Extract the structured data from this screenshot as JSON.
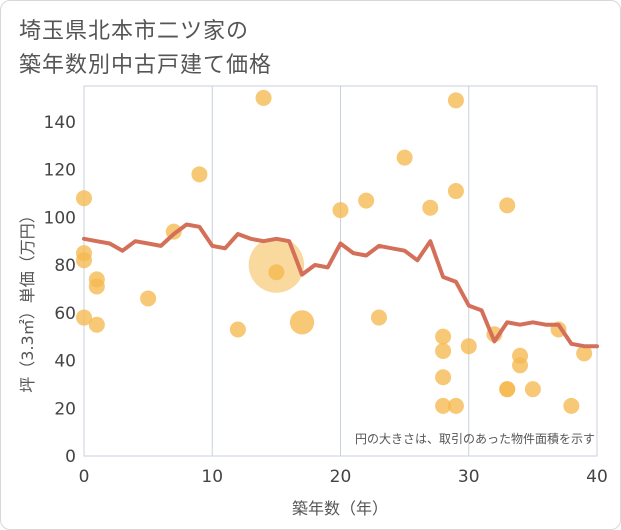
{
  "chart_data": {
    "type": "scatter",
    "title_line1": "埼玉県北本市二ツ家の",
    "title_line2": "築年数別中古戸建て価格",
    "xlabel": "築年数（年）",
    "ylabel": "坪（3.3㎡）単価（万円）",
    "note": "円の大きさは、取引のあった物件面積を示す",
    "xlim": [
      0,
      40
    ],
    "ylim": [
      0,
      155
    ],
    "x_ticks": [
      0,
      10,
      20,
      30,
      40
    ],
    "y_ticks": [
      0,
      20,
      40,
      60,
      80,
      100,
      120,
      140
    ],
    "grid": true,
    "colors": {
      "bubble": "#f5b94f",
      "line": "#d4705a",
      "grid": "#c8d2dc"
    },
    "points": [
      {
        "x": 0,
        "y": 108,
        "size": 1
      },
      {
        "x": 0,
        "y": 85,
        "size": 1
      },
      {
        "x": 0,
        "y": 82,
        "size": 1
      },
      {
        "x": 0,
        "y": 58,
        "size": 1
      },
      {
        "x": 1,
        "y": 74,
        "size": 1
      },
      {
        "x": 1,
        "y": 71,
        "size": 1
      },
      {
        "x": 1,
        "y": 55,
        "size": 1
      },
      {
        "x": 5,
        "y": 66,
        "size": 1
      },
      {
        "x": 7,
        "y": 94,
        "size": 1
      },
      {
        "x": 9,
        "y": 118,
        "size": 1
      },
      {
        "x": 12,
        "y": 53,
        "size": 1
      },
      {
        "x": 14,
        "y": 150,
        "size": 1
      },
      {
        "x": 15,
        "y": 80,
        "size": 12
      },
      {
        "x": 15,
        "y": 77,
        "size": 1
      },
      {
        "x": 17,
        "y": 56,
        "size": 2.3
      },
      {
        "x": 20,
        "y": 103,
        "size": 1
      },
      {
        "x": 22,
        "y": 107,
        "size": 1
      },
      {
        "x": 23,
        "y": 58,
        "size": 1
      },
      {
        "x": 25,
        "y": 125,
        "size": 1
      },
      {
        "x": 27,
        "y": 104,
        "size": 1
      },
      {
        "x": 28,
        "y": 50,
        "size": 1
      },
      {
        "x": 28,
        "y": 44,
        "size": 1
      },
      {
        "x": 28,
        "y": 33,
        "size": 1
      },
      {
        "x": 28,
        "y": 21,
        "size": 1
      },
      {
        "x": 29,
        "y": 149,
        "size": 1
      },
      {
        "x": 29,
        "y": 111,
        "size": 1
      },
      {
        "x": 29,
        "y": 21,
        "size": 1
      },
      {
        "x": 30,
        "y": 46,
        "size": 1
      },
      {
        "x": 32,
        "y": 51,
        "size": 1
      },
      {
        "x": 33,
        "y": 105,
        "size": 1
      },
      {
        "x": 33,
        "y": 28,
        "size": 1
      },
      {
        "x": 33,
        "y": 28,
        "size": 1
      },
      {
        "x": 34,
        "y": 42,
        "size": 1
      },
      {
        "x": 34,
        "y": 38,
        "size": 1
      },
      {
        "x": 35,
        "y": 28,
        "size": 1
      },
      {
        "x": 37,
        "y": 53,
        "size": 1
      },
      {
        "x": 38,
        "y": 21,
        "size": 1
      },
      {
        "x": 39,
        "y": 43,
        "size": 1
      }
    ],
    "trend": {
      "x": [
        0,
        1,
        2,
        3,
        4,
        5,
        6,
        7,
        8,
        9,
        10,
        11,
        12,
        13,
        14,
        15,
        16,
        17,
        18,
        19,
        20,
        21,
        22,
        23,
        24,
        25,
        26,
        27,
        28,
        29,
        30,
        31,
        32,
        33,
        34,
        35,
        36,
        37,
        38,
        39,
        40
      ],
      "y": [
        91,
        90,
        89,
        86,
        90,
        89,
        88,
        93,
        97,
        96,
        88,
        87,
        93,
        91,
        90,
        91,
        90,
        76,
        80,
        79,
        89,
        85,
        84,
        88,
        87,
        86,
        82,
        90,
        75,
        73,
        63,
        61,
        48,
        56,
        55,
        56,
        55,
        55,
        47,
        46,
        46
      ]
    }
  }
}
